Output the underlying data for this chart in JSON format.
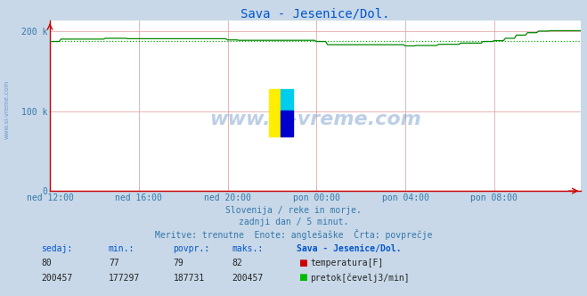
{
  "title": "Sava - Jesenice/Dol.",
  "title_color": "#0055cc",
  "bg_color": "#c8d8e8",
  "plot_bg_color": "#ffffff",
  "grid_v_color": "#dd9999",
  "grid_h_color": "#dd9999",
  "xlabel_ticks": [
    "ned 12:00",
    "ned 16:00",
    "ned 20:00",
    "pon 00:00",
    "pon 04:00",
    "pon 08:00"
  ],
  "ytick_labels": [
    "0",
    "100 k",
    "200 k"
  ],
  "ytick_values": [
    0,
    100000,
    200000
  ],
  "ymax": 213000,
  "xmin": 0,
  "xmax": 287,
  "line_color": "#008800",
  "avg_line_color": "#00aa00",
  "avg_value": 187731,
  "watermark": "www.si-vreme.com",
  "watermark_color": "#4477bb",
  "watermark_alpha": 0.35,
  "footer_line1": "Slovenija / reke in morje.",
  "footer_line2": "zadnji dan / 5 minut.",
  "footer_line3": "Meritve: trenutne  Enote: anglešaške  Črta: povprečje",
  "footer_color": "#3377aa",
  "table_headers": [
    "sedaj:",
    "min.:",
    "povpr.:",
    "maks.:",
    "Sava - Jesenice/Dol."
  ],
  "table_row1": [
    "80",
    "77",
    "79",
    "82"
  ],
  "table_row2": [
    "200457",
    "177297",
    "187731",
    "200457"
  ],
  "legend_temp": "temperatura[F]",
  "legend_pretok": "pretok[čevelj3/min]",
  "temp_color": "#cc0000",
  "pretok_color": "#00bb00",
  "tick_color": "#3377aa",
  "bottom_axis_color": "#cc0000",
  "left_axis_color": "#cc0000",
  "side_watermark": "www.si-vreme.com",
  "side_watermark_color": "#4477bb",
  "icon_yellow": "#ffee00",
  "icon_cyan": "#00ccee",
  "icon_blue": "#0000cc",
  "n_points": 288
}
